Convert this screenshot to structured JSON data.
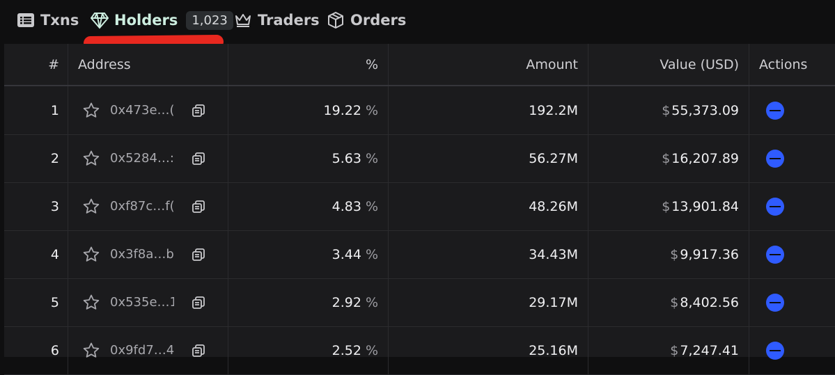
{
  "tabs": [
    {
      "label": "Txns",
      "icon": "list-icon"
    },
    {
      "label": "Holders",
      "icon": "diamond-icon",
      "badge": "1,023",
      "active": true
    },
    {
      "label": "Traders",
      "icon": "crown-icon"
    },
    {
      "label": "Orders",
      "icon": "box-icon"
    }
  ],
  "table": {
    "headers": {
      "num": "#",
      "address": "Address",
      "percent": "%",
      "amount": "Amount",
      "value": "Value (USD)",
      "actions": "Actions"
    },
    "rows": [
      {
        "num": "1",
        "address": "0x473e…(",
        "percent": "19.22",
        "amount": "192.2M",
        "value": "55,373.09"
      },
      {
        "num": "2",
        "address": "0x5284…:",
        "percent": "5.63",
        "amount": "56.27M",
        "value": "16,207.89"
      },
      {
        "num": "3",
        "address": "0xf87c…f(",
        "percent": "4.83",
        "amount": "48.26M",
        "value": "13,901.84"
      },
      {
        "num": "4",
        "address": "0x3f8a…b",
        "percent": "3.44",
        "amount": "34.43M",
        "value": "9,917.36"
      },
      {
        "num": "5",
        "address": "0x535e…1",
        "percent": "2.92",
        "amount": "29.17M",
        "value": "8,402.56"
      },
      {
        "num": "6",
        "address": "0x9fd7…4",
        "percent": "2.52",
        "amount": "25.16M",
        "value": "7,247.41"
      }
    ]
  },
  "symbols": {
    "percent": "%",
    "usd": "$"
  },
  "colors": {
    "accent": "#2f5bff",
    "annotation": "#e8281f",
    "active_tab": "#cdeee0"
  }
}
